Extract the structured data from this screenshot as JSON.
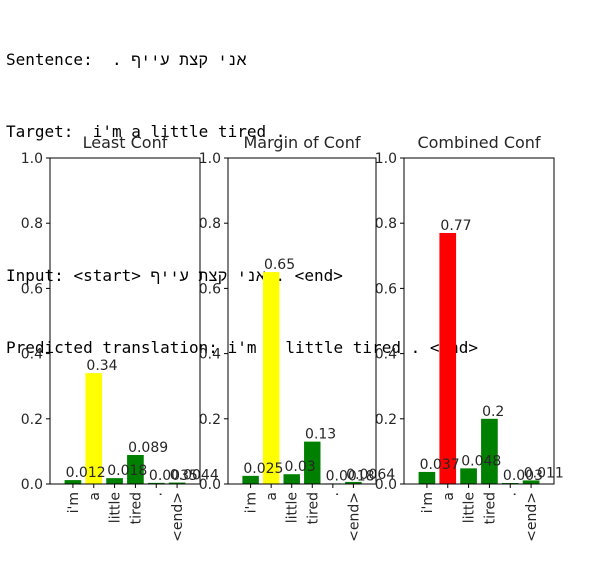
{
  "console": {
    "sentence_label": "Sentence:",
    "sentence_text": "אני קצת עייף .",
    "target_label": "Target:",
    "target_text": "i'm a little tired .",
    "input_label": "Input:",
    "input_text": "<start> אני קצת עייף . <end>",
    "prediction_label": "Predicted translation:",
    "prediction_text": "i'm a little tired . <end>"
  },
  "chart_data": [
    {
      "type": "bar",
      "title": "Least Conf",
      "categories": [
        "i'm",
        "a",
        "little",
        "tired",
        ".",
        "<end>"
      ],
      "values": [
        0.012,
        0.34,
        0.018,
        0.089,
        0.0035,
        0.0044
      ],
      "value_labels": [
        "0.012",
        "0.34",
        "0.018",
        "0.089",
        "0.0035",
        "0.0044"
      ],
      "colors": [
        "#008000",
        "#ffff00",
        "#008000",
        "#008000",
        "#008000",
        "#008000"
      ],
      "ylim": [
        0,
        1.0
      ],
      "yticks": [
        "0.0",
        "0.2",
        "0.4",
        "0.6",
        "0.8",
        "1.0"
      ]
    },
    {
      "type": "bar",
      "title": "Margin of Conf",
      "categories": [
        "i'm",
        "a",
        "little",
        "tired",
        ".",
        "<end>"
      ],
      "values": [
        0.025,
        0.65,
        0.03,
        0.13,
        0.0018,
        0.0064
      ],
      "value_labels": [
        "0.025",
        "0.65",
        "0.03",
        "0.13",
        "0.0018",
        "0.0064"
      ],
      "colors": [
        "#008000",
        "#ffff00",
        "#008000",
        "#008000",
        "#008000",
        "#008000"
      ],
      "ylim": [
        0,
        1.0
      ],
      "yticks": [
        "0.0",
        "0.2",
        "0.4",
        "0.6",
        "0.8",
        "1.0"
      ]
    },
    {
      "type": "bar",
      "title": "Combined Conf",
      "categories": [
        "i'm",
        "a",
        "little",
        "tired",
        ".",
        "<end>"
      ],
      "values": [
        0.037,
        0.77,
        0.048,
        0.2,
        0.003,
        0.011
      ],
      "value_labels": [
        "0.037",
        "0.77",
        "0.048",
        "0.2",
        "0.003",
        "0.011"
      ],
      "colors": [
        "#008000",
        "#ff0000",
        "#008000",
        "#008000",
        "#008000",
        "#008000"
      ],
      "ylim": [
        0,
        1.0
      ],
      "yticks": [
        "0.0",
        "0.2",
        "0.4",
        "0.6",
        "0.8",
        "1.0"
      ]
    }
  ]
}
